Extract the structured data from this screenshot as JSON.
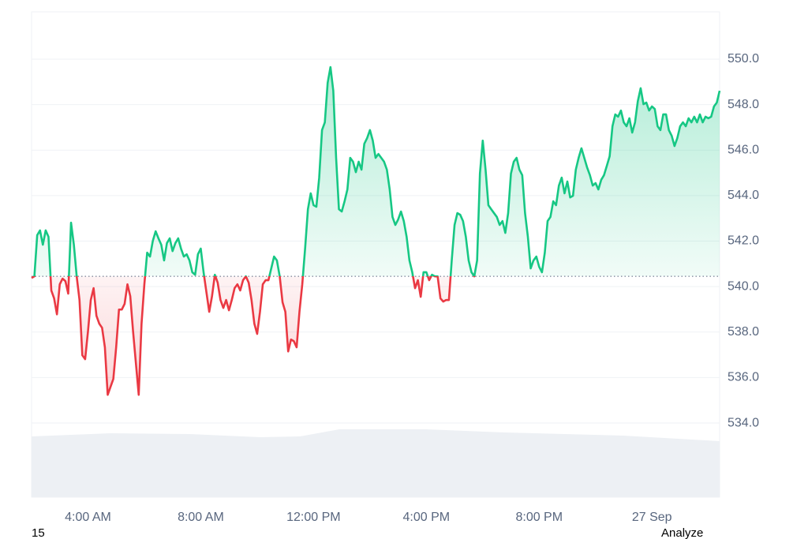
{
  "chart_data": {
    "type": "line",
    "x": [
      2,
      2.1,
      2.2,
      2.3,
      2.4,
      2.5,
      2.6,
      2.7,
      2.8,
      2.9,
      3,
      3.1,
      3.2,
      3.3,
      3.4,
      3.5,
      3.6,
      3.7,
      3.8,
      3.9,
      4,
      4.1,
      4.2,
      4.3,
      4.4,
      4.5,
      4.6,
      4.7,
      4.8,
      4.9,
      5,
      5.1,
      5.2,
      5.3,
      5.4,
      5.5,
      5.6,
      5.7,
      5.8,
      5.9,
      6,
      6.1,
      6.2,
      6.3,
      6.4,
      6.5,
      6.6,
      6.7,
      6.8,
      6.9,
      7,
      7.1,
      7.2,
      7.3,
      7.4,
      7.5,
      7.6,
      7.7,
      7.8,
      7.9,
      8,
      8.1,
      8.2,
      8.3,
      8.4,
      8.5,
      8.6,
      8.7,
      8.8,
      8.9,
      9,
      9.1,
      9.2,
      9.3,
      9.4,
      9.5,
      9.6,
      9.7,
      9.8,
      9.9,
      10,
      10.1,
      10.2,
      10.3,
      10.4,
      10.5,
      10.6,
      10.7,
      10.8,
      10.9,
      11,
      11.1,
      11.2,
      11.3,
      11.4,
      11.5,
      11.6,
      11.7,
      11.8,
      11.9,
      12,
      12.1,
      12.2,
      12.3,
      12.4,
      12.5,
      12.6,
      12.7,
      12.8,
      12.9,
      13,
      13.1,
      13.2,
      13.3,
      13.4,
      13.5,
      13.6,
      13.7,
      13.8,
      13.9,
      14,
      14.1,
      14.2,
      14.3,
      14.4,
      14.5,
      14.6,
      14.7,
      14.8,
      14.9,
      15,
      15.1,
      15.2,
      15.3,
      15.4,
      15.5,
      15.6,
      15.7,
      15.8,
      15.9,
      16,
      16.1,
      16.2,
      16.3,
      16.4,
      16.5,
      16.6,
      16.7,
      16.8,
      16.9,
      17,
      17.1,
      17.2,
      17.3,
      17.4,
      17.5,
      17.6,
      17.7,
      17.8,
      17.9,
      18,
      18.1,
      18.2,
      18.3,
      18.4,
      18.5,
      18.6,
      18.7,
      18.8,
      18.9,
      19,
      19.1,
      19.2,
      19.3,
      19.4,
      19.5,
      19.6,
      19.7,
      19.8,
      19.9,
      20,
      20.1,
      20.2,
      20.3,
      20.4,
      20.5,
      20.6,
      20.7,
      20.8,
      20.9,
      21,
      21.1,
      21.2,
      21.3,
      21.4,
      21.5,
      21.6,
      21.7,
      21.8,
      21.9,
      22,
      22.1,
      22.2,
      22.3,
      22.4,
      22.5,
      22.6,
      22.7,
      22.8,
      22.9,
      23,
      23.1,
      23.2,
      23.3,
      23.4,
      23.5,
      23.6,
      23.7,
      23.8,
      23.9,
      24,
      24.1,
      24.2,
      24.3,
      24.4,
      24.5,
      24.6,
      24.7,
      24.8,
      24.9,
      25,
      25.1,
      25.2,
      25.3,
      25.4,
      25.5,
      25.6,
      25.7,
      25.8,
      25.9,
      26,
      26.1,
      26.2,
      26.3,
      26.4
    ],
    "values": [
      540.38,
      540.45,
      542.26,
      542.47,
      541.84,
      542.47,
      542.19,
      539.83,
      539.48,
      538.78,
      540.1,
      540.35,
      540.24,
      539.69,
      542.81,
      541.84,
      540.45,
      539.41,
      536.98,
      536.81,
      538.02,
      539.41,
      539.93,
      538.72,
      538.37,
      538.19,
      537.33,
      535.24,
      535.59,
      535.94,
      537.33,
      538.99,
      538.99,
      539.24,
      540.1,
      539.58,
      538.02,
      536.63,
      535.24,
      538.37,
      540.1,
      541.49,
      541.32,
      542.01,
      542.43,
      542.12,
      541.84,
      541.15,
      541.91,
      542.12,
      541.56,
      541.91,
      542.12,
      541.67,
      541.32,
      541.42,
      541.15,
      540.63,
      540.52,
      541.42,
      541.67,
      540.63,
      539.76,
      538.89,
      539.58,
      540.52,
      540.17,
      539.41,
      539.06,
      539.41,
      538.96,
      539.41,
      539.93,
      540.1,
      539.83,
      540.28,
      540.45,
      540.17,
      539.41,
      538.37,
      537.92,
      538.89,
      540.1,
      540.28,
      540.28,
      540.8,
      541.32,
      541.15,
      540.45,
      539.31,
      538.89,
      537.15,
      537.67,
      537.6,
      537.33,
      538.89,
      540.1,
      541.67,
      543.4,
      544.1,
      543.58,
      543.51,
      544.79,
      546.88,
      547.22,
      548.96,
      549.65,
      548.61,
      545.66,
      543.4,
      543.3,
      543.75,
      544.27,
      545.66,
      545.49,
      545.03,
      545.49,
      545.14,
      546.28,
      546.53,
      546.88,
      546.42,
      545.66,
      545.83,
      545.66,
      545.49,
      545.14,
      544.27,
      543.06,
      542.71,
      542.95,
      543.3,
      542.88,
      542.19,
      541.15,
      540.63,
      539.93,
      540.28,
      539.55,
      540.63,
      540.63,
      540.28,
      540.52,
      540.45,
      540.45,
      539.48,
      539.34,
      539.41,
      539.41,
      541.15,
      542.71,
      543.23,
      543.16,
      542.88,
      542.19,
      541.15,
      540.63,
      540.45,
      541.15,
      544.97,
      546.42,
      545.14,
      543.58,
      543.4,
      543.23,
      543.06,
      542.71,
      542.88,
      542.36,
      543.23,
      544.97,
      545.49,
      545.66,
      545.14,
      544.9,
      543.23,
      542.19,
      540.8,
      541.15,
      541.32,
      540.87,
      540.63,
      541.49,
      542.88,
      543.06,
      543.75,
      543.58,
      544.44,
      544.79,
      544.1,
      544.62,
      543.92,
      543.99,
      545.14,
      545.66,
      546.08,
      545.66,
      545.24,
      544.9,
      544.44,
      544.55,
      544.27,
      544.69,
      544.9,
      545.31,
      545.73,
      547.05,
      547.57,
      547.47,
      547.74,
      547.22,
      547.05,
      547.4,
      546.77,
      547.22,
      548.16,
      548.72,
      548.02,
      548.09,
      547.74,
      547.92,
      547.81,
      547.05,
      546.88,
      547.57,
      547.57,
      546.88,
      546.63,
      546.18,
      546.53,
      547.05,
      547.22,
      547.05,
      547.4,
      547.22,
      547.47,
      547.22,
      547.57,
      547.22,
      547.47,
      547.4,
      547.47,
      547.92,
      548.09,
      548.61
    ],
    "baseline": 540.45,
    "up_color": "#16c784",
    "down_color": "#ea3943",
    "xlim": [
      2,
      26.4
    ],
    "xticks": [
      {
        "value": 4,
        "label": "4:00 AM"
      },
      {
        "value": 8,
        "label": "8:00 AM"
      },
      {
        "value": 12,
        "label": "12:00 PM"
      },
      {
        "value": 16,
        "label": "4:00 PM"
      },
      {
        "value": 20,
        "label": "8:00 PM"
      },
      {
        "value": 24,
        "label": "27 Sep"
      }
    ],
    "ylim": [
      530.74,
      552.08
    ],
    "yticks": [
      {
        "value": 534,
        "label": "534.0"
      },
      {
        "value": 536,
        "label": "536.0"
      },
      {
        "value": 538,
        "label": "538.0"
      },
      {
        "value": 540,
        "label": "540.0"
      },
      {
        "value": 542,
        "label": "542.0"
      },
      {
        "value": 544,
        "label": "544.0"
      },
      {
        "value": 546,
        "label": "546.0"
      },
      {
        "value": 548,
        "label": "548.0"
      },
      {
        "value": 550,
        "label": "550.0"
      }
    ],
    "grid": true
  },
  "footer": {
    "left": "15",
    "right": "Analyze"
  }
}
